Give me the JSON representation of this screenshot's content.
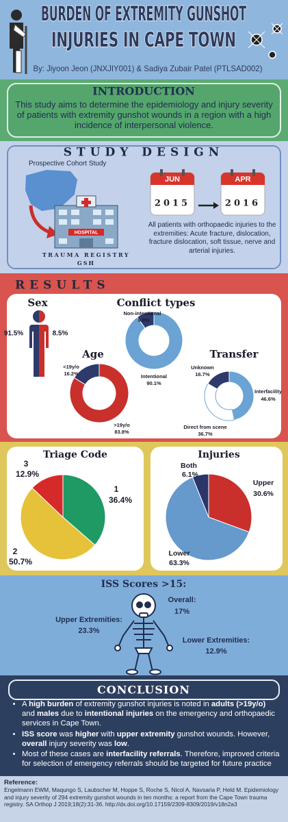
{
  "header": {
    "title": [
      "BURDEN OF EXTREMITY GUNSHOT",
      "INJURIES IN CAPE TOWN"
    ],
    "authors": "By: Jiyoon Jeon (JNXJIY001) & Sadiya Zubair Patel (PTLSAD002)"
  },
  "introduction": {
    "title": "INTRODUCTION",
    "text": "This study aims to determine the epidemiology and injury severity of patients with extremity gunshot wounds in a region with a high incidence of interpersonal violence."
  },
  "study_design": {
    "title": "STUDY DESIGN",
    "design": "Prospective Cohort Study",
    "hospital_sign": "HOSPITAL",
    "registry": [
      "TRAUMA REGISTRY",
      "GSH"
    ],
    "start": {
      "month": "JUN",
      "year": "2015"
    },
    "end": {
      "month": "APR",
      "year": "2016"
    },
    "criteria": "All  patients with orthopaedic injuries to the extremities: Acute fracture, dislocation, fracture dislocation, soft tissue, nerve and arterial injuries."
  },
  "results": {
    "title": "RESULTS"
  },
  "chart_data": [
    {
      "type": "pictogram",
      "title": "Sex",
      "categories": [
        null,
        null
      ],
      "values": [
        91.5,
        8.5
      ],
      "value_labels": [
        "91.5%",
        "8.5%"
      ],
      "colors": [
        "#2d3a6b",
        "#c9302c"
      ]
    },
    {
      "type": "donut",
      "title": "Conflict types",
      "categories": [
        "Intentional",
        "Non-intentional"
      ],
      "values": [
        90.1,
        9.9
      ],
      "value_labels": [
        "90.1%",
        "9.9%"
      ],
      "colors": [
        "#6aa3d4",
        "#2d3a6b"
      ]
    },
    {
      "type": "donut",
      "title": "Age",
      "categories": [
        ">19y/o",
        "<19y/o"
      ],
      "values": [
        83.8,
        16.2
      ],
      "value_labels": [
        "83.8%",
        "16.2%"
      ],
      "colors": [
        "#c9302c",
        "#2d3a6b"
      ]
    },
    {
      "type": "donut",
      "title": "Transfer",
      "categories": [
        "Interfacility",
        "Direct from scene",
        "Unknown"
      ],
      "values": [
        46.6,
        36.7,
        16.7
      ],
      "value_labels": [
        "46.6%",
        "36.7%",
        "16.7%"
      ],
      "colors": [
        "#6aa3d4",
        "#ffffff",
        "#2d3a6b"
      ]
    },
    {
      "type": "pie",
      "title": "Triage Code",
      "categories": [
        "1",
        "2",
        "3"
      ],
      "values": [
        36.4,
        50.7,
        12.9
      ],
      "value_labels": [
        "36.4%",
        "50.7%",
        "12.9%"
      ],
      "colors": [
        "#1f9a64",
        "#e6c23a",
        "#d62a2a"
      ]
    },
    {
      "type": "pie",
      "title": "Injuries",
      "categories": [
        "Upper",
        "Lower",
        "Both"
      ],
      "values": [
        30.6,
        63.3,
        6.1
      ],
      "value_labels": [
        "30.6%",
        "63.3%",
        "6.1%"
      ],
      "colors": [
        "#c9302c",
        "#6699cc",
        "#2a3568"
      ]
    }
  ],
  "iss": {
    "title": "ISS Scores >15:",
    "items": [
      {
        "label": "Overall:",
        "value": "17%"
      },
      {
        "label": "Upper Extremities:",
        "value": "23.3%"
      },
      {
        "label": "Lower Extremities:",
        "value": "12.9%"
      }
    ]
  },
  "conclusion": {
    "title": "CONCLUSION",
    "bullets": [
      [
        "A ",
        "high burden",
        " of extremity gunshot injuries is noted in ",
        "adults (>19y/o)",
        " and ",
        "males",
        " due to ",
        "intentional injuries",
        " on the emergency and orthopaedic services in Cape Town."
      ],
      [
        "ISS score",
        " was ",
        "higher",
        " with ",
        "upper extremity",
        " gunshot wounds. However, ",
        "overall",
        " injury severity was ",
        "low",
        "."
      ],
      [
        " Most of these cases are ",
        "interfacility referrals",
        ". Therefore, improved criteria for selection of emergency referrals should be targeted for future practice"
      ]
    ]
  },
  "reference": {
    "title": "Reference:",
    "text": "Engelmann EWM, Maqungo S, Laubscher M, Hoppe S, Roche S, Nicol A, Navsaria P, Held M. Epidemiology and injury severity of 294 extremity gunshot wounds in ten months: a report from the Cape Town trauma registry. SA Orthop J 2019;18(2):31-36. http://dx.doi.org/10.17159/2309-8309/2019/v18n2a3"
  }
}
